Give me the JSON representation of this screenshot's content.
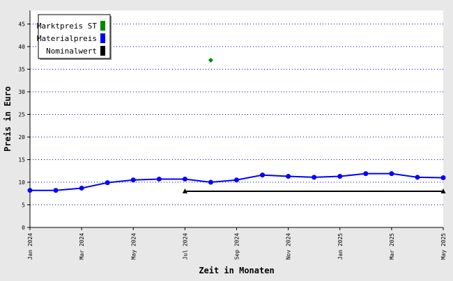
{
  "chart_data": {
    "type": "line",
    "title": "",
    "xlabel": "Zeit in Monaten",
    "ylabel": "Preis in Euro",
    "ylim": [
      0,
      48
    ],
    "yticks": [
      0,
      5,
      10,
      15,
      20,
      25,
      30,
      35,
      40,
      45
    ],
    "xlim": [
      "2024-01",
      "2025-05"
    ],
    "xticks": [
      {
        "x": "2024-01",
        "label": "Jan 2024"
      },
      {
        "x": "2024-03",
        "label": "Mar 2024"
      },
      {
        "x": "2024-05",
        "label": "May 2024"
      },
      {
        "x": "2024-07",
        "label": "Jul 2024"
      },
      {
        "x": "2024-09",
        "label": "Sep 2024"
      },
      {
        "x": "2024-11",
        "label": "Nov 2024"
      },
      {
        "x": "2025-01",
        "label": "Jan 2025"
      },
      {
        "x": "2025-03",
        "label": "Mar 2025"
      },
      {
        "x": "2025-05",
        "label": "May 2025"
      }
    ],
    "grid": "horizontal-dotted",
    "legend_position": "top-left",
    "series": [
      {
        "name": "Marktpreis ST",
        "color": "#008800",
        "marker": "diamond",
        "points": [
          {
            "x": "2024-08",
            "y": 37
          }
        ]
      },
      {
        "name": "Materialpreis",
        "color": "#0000ff",
        "marker": "circle",
        "points": [
          {
            "x": "2024-01",
            "y": 8.2
          },
          {
            "x": "2024-02",
            "y": 8.2
          },
          {
            "x": "2024-03",
            "y": 8.7
          },
          {
            "x": "2024-04",
            "y": 9.9
          },
          {
            "x": "2024-05",
            "y": 10.5
          },
          {
            "x": "2024-06",
            "y": 10.7
          },
          {
            "x": "2024-07",
            "y": 10.7
          },
          {
            "x": "2024-08",
            "y": 10.0
          },
          {
            "x": "2024-09",
            "y": 10.5
          },
          {
            "x": "2024-10",
            "y": 11.6
          },
          {
            "x": "2024-11",
            "y": 11.3
          },
          {
            "x": "2024-12",
            "y": 11.1
          },
          {
            "x": "2025-01",
            "y": 11.3
          },
          {
            "x": "2025-02",
            "y": 11.9
          },
          {
            "x": "2025-03",
            "y": 11.9
          },
          {
            "x": "2025-04",
            "y": 11.1
          },
          {
            "x": "2025-05",
            "y": 11.0
          }
        ]
      },
      {
        "name": "Nominalwert",
        "color": "#000000",
        "marker": "triangle",
        "points": [
          {
            "x": "2024-07",
            "y": 8
          },
          {
            "x": "2025-05",
            "y": 8
          }
        ]
      }
    ]
  }
}
